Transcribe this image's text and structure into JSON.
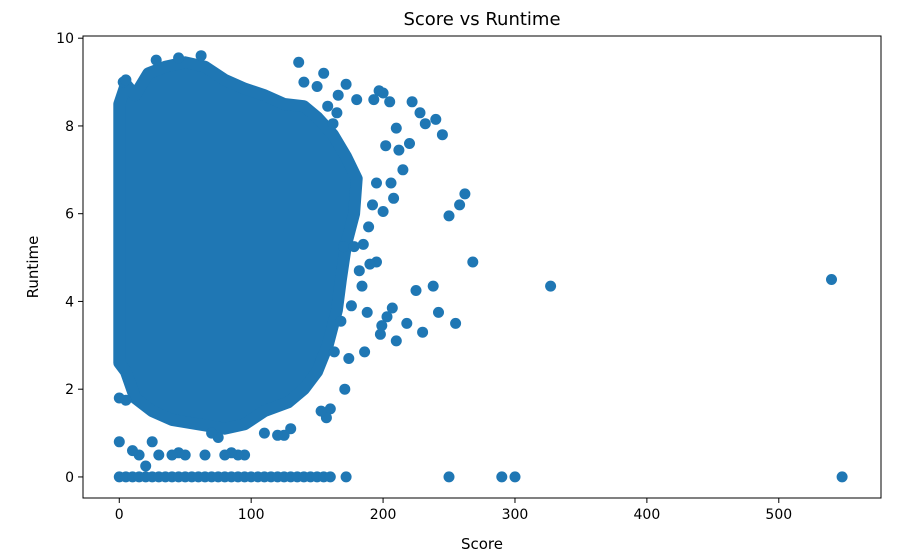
{
  "chart_data": {
    "type": "scatter",
    "title": "Score vs Runtime",
    "xlabel": "Score",
    "ylabel": "Runtime",
    "xlim": [
      -27.5,
      577.5
    ],
    "ylim": [
      -0.48,
      10.05
    ],
    "xticks": [
      0,
      100,
      200,
      300,
      400,
      500
    ],
    "yticks": [
      0,
      2,
      4,
      6,
      8,
      10
    ],
    "xtick_labels": [
      "0",
      "100",
      "200",
      "300",
      "400",
      "500"
    ],
    "ytick_labels": [
      "0",
      "2",
      "4",
      "6",
      "8",
      "10"
    ],
    "grid": false,
    "marker_color": "#1f77b4",
    "series": [
      {
        "points": [
          [
            0,
            0
          ],
          [
            5,
            0
          ],
          [
            10,
            0
          ],
          [
            15,
            0
          ],
          [
            20,
            0
          ],
          [
            25,
            0
          ],
          [
            30,
            0
          ],
          [
            35,
            0
          ],
          [
            40,
            0
          ],
          [
            45,
            0
          ],
          [
            50,
            0
          ],
          [
            55,
            0
          ],
          [
            60,
            0
          ],
          [
            65,
            0
          ],
          [
            70,
            0
          ],
          [
            75,
            0
          ],
          [
            80,
            0
          ],
          [
            85,
            0
          ],
          [
            90,
            0
          ],
          [
            95,
            0
          ],
          [
            100,
            0
          ],
          [
            105,
            0
          ],
          [
            110,
            0
          ],
          [
            115,
            0
          ],
          [
            120,
            0
          ],
          [
            125,
            0
          ],
          [
            130,
            0
          ],
          [
            135,
            0
          ],
          [
            140,
            0
          ],
          [
            145,
            0
          ],
          [
            150,
            0
          ],
          [
            155,
            0
          ],
          [
            160,
            0
          ],
          [
            172,
            0
          ],
          [
            250,
            0
          ],
          [
            290,
            0
          ],
          [
            300,
            0
          ],
          [
            548,
            0
          ],
          [
            540,
            4.5
          ],
          [
            327,
            4.35
          ],
          [
            268,
            4.9
          ],
          [
            262,
            6.45
          ],
          [
            258,
            6.2
          ],
          [
            255,
            3.5
          ],
          [
            250,
            5.95
          ],
          [
            245,
            7.8
          ],
          [
            242,
            3.75
          ],
          [
            240,
            8.15
          ],
          [
            238,
            4.35
          ],
          [
            232,
            8.05
          ],
          [
            230,
            3.3
          ],
          [
            228,
            8.3
          ],
          [
            225,
            4.25
          ],
          [
            222,
            8.55
          ],
          [
            220,
            7.6
          ],
          [
            218,
            3.5
          ],
          [
            215,
            7.0
          ],
          [
            212,
            7.45
          ],
          [
            210,
            7.95
          ],
          [
            210,
            3.1
          ],
          [
            208,
            6.35
          ],
          [
            207,
            3.85
          ],
          [
            206,
            6.7
          ],
          [
            205,
            8.55
          ],
          [
            203,
            3.65
          ],
          [
            202,
            7.55
          ],
          [
            200,
            8.75
          ],
          [
            200,
            6.05
          ],
          [
            199,
            3.45
          ],
          [
            198,
            3.25
          ],
          [
            197,
            8.8
          ],
          [
            195,
            6.7
          ],
          [
            195,
            4.9
          ],
          [
            193,
            8.6
          ],
          [
            192,
            6.2
          ],
          [
            190,
            4.85
          ],
          [
            189,
            5.7
          ],
          [
            188,
            3.75
          ],
          [
            186,
            2.85
          ],
          [
            185,
            5.3
          ],
          [
            184,
            4.35
          ],
          [
            182,
            4.7
          ],
          [
            180,
            8.6
          ],
          [
            178,
            5.25
          ],
          [
            176,
            3.9
          ],
          [
            174,
            2.7
          ],
          [
            172,
            8.95
          ],
          [
            171,
            2.0
          ],
          [
            170,
            5.25
          ],
          [
            168,
            3.55
          ],
          [
            166,
            8.7
          ],
          [
            165,
            8.3
          ],
          [
            163,
            2.85
          ],
          [
            162,
            8.05
          ],
          [
            160,
            1.55
          ],
          [
            158,
            8.45
          ],
          [
            157,
            1.35
          ],
          [
            155,
            9.2
          ],
          [
            153,
            1.5
          ],
          [
            150,
            8.9
          ],
          [
            140,
            9.0
          ],
          [
            136,
            9.45
          ],
          [
            130,
            1.1
          ],
          [
            125,
            0.95
          ],
          [
            120,
            0.95
          ],
          [
            110,
            1.0
          ],
          [
            95,
            0.5
          ],
          [
            90,
            0.5
          ],
          [
            85,
            0.55
          ],
          [
            80,
            0.5
          ],
          [
            75,
            0.9
          ],
          [
            70,
            1.0
          ],
          [
            65,
            0.5
          ],
          [
            50,
            0.5
          ],
          [
            45,
            0.55
          ],
          [
            40,
            0.5
          ],
          [
            30,
            0.5
          ],
          [
            25,
            0.8
          ],
          [
            20,
            0.25
          ],
          [
            15,
            0.5
          ],
          [
            10,
            0.6
          ],
          [
            0,
            0.8
          ],
          [
            0,
            1.8
          ],
          [
            5,
            1.75
          ],
          [
            3,
            9.0
          ],
          [
            5,
            9.05
          ],
          [
            28,
            9.5
          ],
          [
            45,
            9.55
          ],
          [
            62,
            9.6
          ]
        ]
      }
    ]
  }
}
